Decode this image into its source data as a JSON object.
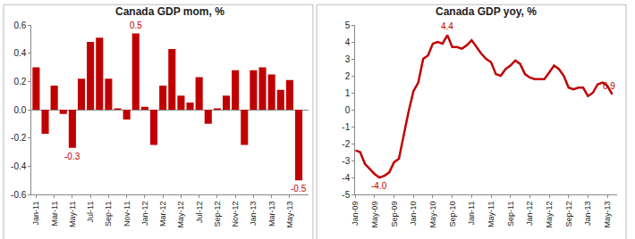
{
  "chart_data": [
    {
      "type": "bar",
      "title": "Canada GDP mom, %",
      "color": "#c00000",
      "categories": [
        "Jan-11",
        null,
        "Mar-11",
        null,
        "May-11",
        null,
        "Jul-11",
        null,
        "Sep-11",
        null,
        "Nov-11",
        null,
        "Jan-12",
        null,
        "Mar-12",
        null,
        "May-12",
        null,
        "Jul-12",
        null,
        "Sep-12",
        null,
        "Nov-12",
        null,
        "Jan-13",
        null,
        "Mar-13",
        null,
        "May-13",
        null
      ],
      "values": [
        0.3,
        -0.17,
        0.17,
        -0.03,
        -0.27,
        0.22,
        0.48,
        0.51,
        0.22,
        0.01,
        -0.07,
        0.54,
        0.02,
        -0.25,
        0.17,
        0.43,
        0.1,
        0.05,
        0.23,
        -0.1,
        0.01,
        0.1,
        0.28,
        -0.25,
        0.28,
        0.3,
        0.25,
        0.14,
        0.21,
        -0.5
      ],
      "ylim": [
        -0.6,
        0.6
      ],
      "yticks": [
        -0.6,
        -0.4,
        -0.2,
        {
          "value": 0,
          "label": "0.0"
        },
        0.2,
        0.4,
        0.6
      ],
      "grid": false,
      "annotations": [
        {
          "x": 4,
          "y": -0.27,
          "text": "-0.3"
        },
        {
          "x": 11,
          "y": 0.54,
          "text": "0.5"
        },
        {
          "x": 29,
          "y": -0.5,
          "text": "-0.5"
        }
      ]
    },
    {
      "type": "line",
      "title": "Canada GDP yoy, %",
      "color": "#c00000",
      "categories": [
        "Jan-09",
        null,
        null,
        null,
        "May-09",
        null,
        null,
        null,
        "Sep-09",
        null,
        null,
        null,
        "Jan-10",
        null,
        null,
        null,
        "May-10",
        null,
        null,
        null,
        "Sep-10",
        null,
        null,
        null,
        "Jan-11",
        null,
        null,
        null,
        "May-11",
        null,
        null,
        null,
        "Sep-11",
        null,
        null,
        null,
        "Jan-12",
        null,
        null,
        null,
        "May-12",
        null,
        null,
        null,
        "Sep-12",
        null,
        null,
        null,
        "Jan-13",
        null,
        null,
        null,
        "May-13",
        null
      ],
      "values": [
        -2.4,
        -2.5,
        -3.2,
        -3.5,
        -3.8,
        -4.0,
        -3.9,
        -3.7,
        -3.1,
        -2.9,
        -1.5,
        -0.1,
        1.1,
        1.6,
        3.0,
        3.2,
        3.9,
        4.0,
        3.9,
        4.4,
        3.7,
        3.7,
        3.6,
        3.8,
        4.1,
        3.7,
        3.3,
        3.0,
        2.8,
        2.1,
        2.0,
        2.4,
        2.6,
        2.9,
        2.7,
        2.1,
        1.9,
        1.8,
        1.8,
        1.8,
        2.2,
        2.6,
        2.4,
        2.0,
        1.3,
        1.2,
        1.3,
        1.3,
        0.8,
        1.0,
        1.5,
        1.6,
        1.4,
        0.9
      ],
      "ylim": [
        -5,
        5
      ],
      "yticks": [
        -5,
        -4,
        -3,
        -2,
        -1,
        0,
        1,
        2,
        3,
        4,
        5
      ],
      "grid": false,
      "annotations": [
        {
          "x": 5,
          "y": -4.0,
          "text": "-4.0"
        },
        {
          "x": 19,
          "y": 4.4,
          "text": "4.4"
        },
        {
          "x": 53,
          "y": 0.9,
          "text": "0.9"
        }
      ]
    }
  ]
}
